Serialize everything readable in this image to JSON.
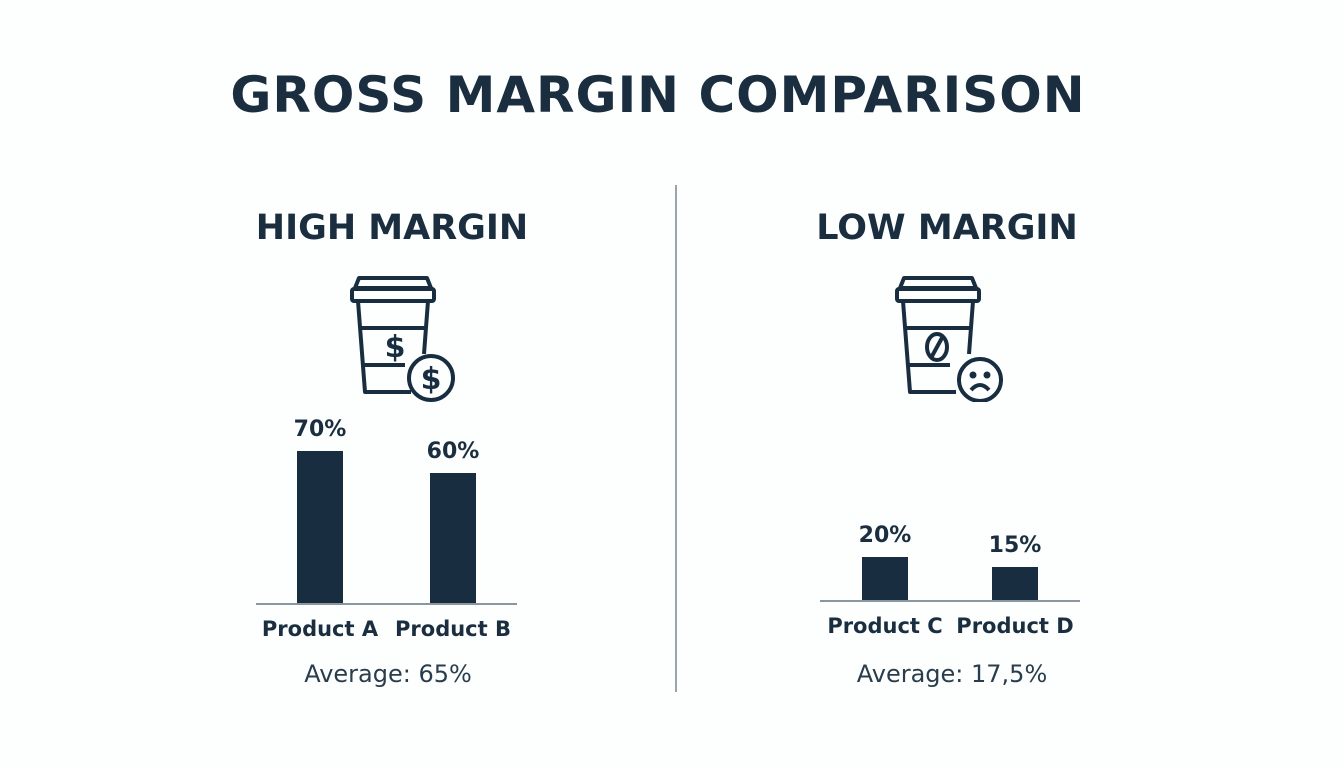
{
  "title": "GROSS MARGIN COMPARISON",
  "colors": {
    "bar": "#182e40",
    "text": "#1a2e3f",
    "divider": "#9aa4ad"
  },
  "chart_data": [
    {
      "type": "bar",
      "title": "HIGH MARGIN",
      "icon": "coffee-cup-dollar-coin-icon",
      "categories": [
        "Product A",
        "Product B"
      ],
      "values": [
        70,
        60
      ],
      "data_labels": [
        "70%",
        "60%"
      ],
      "note": "Average: 65%"
    },
    {
      "type": "bar",
      "title": "LOW MARGIN",
      "icon": "coffee-cup-sad-face-icon",
      "categories": [
        "Product C",
        "Product D"
      ],
      "values": [
        20,
        15
      ],
      "data_labels": [
        "20%",
        "15%"
      ],
      "note": "Average: 17,5%"
    }
  ]
}
